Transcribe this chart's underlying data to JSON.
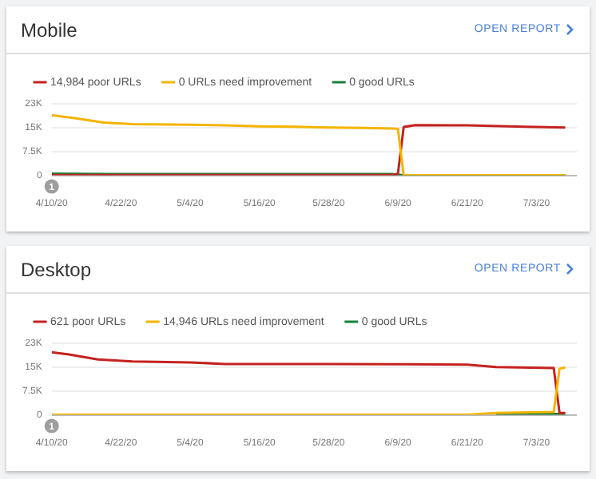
{
  "chart_data": [
    {
      "type": "line",
      "title": "Mobile",
      "annotations": [
        "OPEN REPORT",
        {
          "text": "1",
          "x": "--04-10",
          "y": 0
        }
      ],
      "legend": "top left",
      "grid": "y",
      "marker": "none",
      "line_style": "solid",
      "xlim": [
        "--04-10",
        "--07-10"
      ],
      "xticks": [
        {
          "value": "--04-10",
          "label": "4/10/20"
        },
        {
          "value": "--04-22",
          "label": "4/22/20"
        },
        {
          "value": "--05-04",
          "label": "5/4/20"
        },
        {
          "value": "--05-16",
          "label": "5/16/20"
        },
        {
          "value": "--05-28",
          "label": "5/28/20"
        },
        {
          "value": "--06-09",
          "label": "6/9/20"
        },
        {
          "value": "--06-21",
          "label": "6/21/20"
        },
        {
          "value": "--07-03",
          "label": "7/3/20"
        }
      ],
      "ylim": [
        0,
        22500
      ],
      "yticks": [
        0,
        {
          "value": 7500,
          "label": "7.5K"
        },
        {
          "value": 15000,
          "label": "15K"
        },
        {
          "value": 22500,
          "label": "23K"
        }
      ],
      "series": [
        {
          "name": "14,984 poor URLs",
          "color": "#c5221f",
          "x": [
            "--04-10",
            "--05-10",
            "--06-08",
            "--06-09",
            "--06-10",
            "--06-12",
            "--06-21",
            "--07-01",
            "--07-08"
          ],
          "values": [
            100,
            100,
            100,
            500,
            15200,
            15800,
            15700,
            15300,
            15000
          ]
        },
        {
          "name": "0 URLs need improvement",
          "color": "#f4b400",
          "x": [
            "--04-10",
            "--04-14",
            "--04-19",
            "--04-24",
            "--05-04",
            "--05-10",
            "--05-16",
            "--05-22",
            "--05-28",
            "--06-03",
            "--06-08",
            "--06-09",
            "--06-10",
            "--07-08"
          ],
          "values": [
            18900,
            18000,
            16600,
            16100,
            15900,
            15700,
            15400,
            15300,
            15000,
            14900,
            14700,
            14600,
            0,
            0
          ]
        },
        {
          "name": "0 good URLs",
          "color": "#188038",
          "x": [
            "--04-10",
            "--04-20",
            "--05-20",
            "--06-08",
            "--06-10",
            "--07-08"
          ],
          "values": [
            500,
            400,
            400,
            400,
            0,
            0
          ]
        }
      ]
    },
    {
      "type": "line",
      "title": "Desktop",
      "annotations": [
        "OPEN REPORT",
        {
          "text": "1",
          "x": "--04-10",
          "y": 0
        }
      ],
      "legend": "top left",
      "grid": "y",
      "marker": "none",
      "line_style": "solid",
      "xlim": [
        "--04-10",
        "--07-10"
      ],
      "xticks": [
        {
          "value": "--04-10",
          "label": "4/10/20"
        },
        {
          "value": "--04-22",
          "label": "4/22/20"
        },
        {
          "value": "--05-04",
          "label": "5/4/20"
        },
        {
          "value": "--05-16",
          "label": "5/16/20"
        },
        {
          "value": "--05-28",
          "label": "5/28/20"
        },
        {
          "value": "--06-09",
          "label": "6/9/20"
        },
        {
          "value": "--06-21",
          "label": "6/21/20"
        },
        {
          "value": "--07-03",
          "label": "7/3/20"
        }
      ],
      "ylim": [
        0,
        22500
      ],
      "yticks": [
        0,
        {
          "value": 7500,
          "label": "7.5K"
        },
        {
          "value": 15000,
          "label": "15K"
        },
        {
          "value": 22500,
          "label": "23K"
        }
      ],
      "series": [
        {
          "name": "621 poor URLs",
          "color": "#c5221f",
          "x": [
            "--04-10",
            "--04-13",
            "--04-18",
            "--04-24",
            "--05-04",
            "--05-10",
            "--05-28",
            "--06-09",
            "--06-21",
            "--06-26",
            "--07-06",
            "--07-07",
            "--07-08"
          ],
          "values": [
            19700,
            19000,
            17400,
            16800,
            16500,
            16000,
            16000,
            15900,
            15800,
            15000,
            14700,
            600,
            600
          ]
        },
        {
          "name": "14,946 URLs need improvement",
          "color": "#f4b400",
          "x": [
            "--04-10",
            "--06-21",
            "--06-26",
            "--07-06",
            "--07-07",
            "--07-08"
          ],
          "values": [
            0,
            0,
            600,
            900,
            14500,
            14900
          ]
        },
        {
          "name": "0 good URLs",
          "color": "#188038",
          "x": [
            "--06-26",
            "--07-07",
            "--07-08"
          ],
          "values": [
            300,
            300,
            0
          ]
        }
      ]
    }
  ]
}
